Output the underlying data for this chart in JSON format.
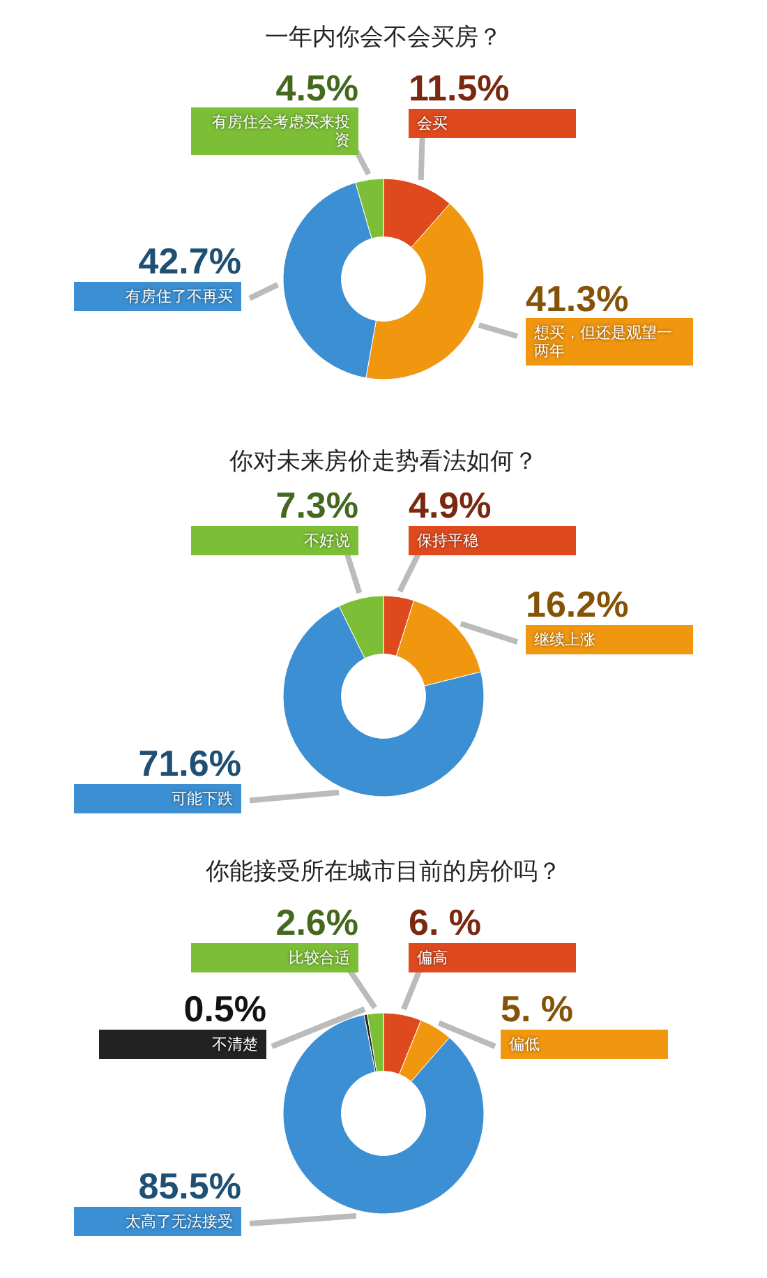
{
  "chart_data": [
    {
      "type": "donut",
      "title": "一年内你会不会买房？",
      "categories": [
        "会买",
        "想买，但还是观望一两年",
        "有房住了不再买",
        "有房住会考虑买来投资"
      ],
      "values": [
        11.5,
        41.3,
        42.7,
        4.5
      ],
      "value_labels": [
        "11.5%",
        "41.3%",
        "42.7%",
        "4.5%"
      ],
      "colors": [
        "#de4a1e",
        "#f0960f",
        "#3b8fd2",
        "#7cbf36"
      ]
    },
    {
      "type": "donut",
      "title": "你对未来房价走势看法如何？",
      "categories": [
        "保持平稳",
        "继续上涨",
        "可能下跌",
        "不好说"
      ],
      "values": [
        4.9,
        16.2,
        71.6,
        7.3
      ],
      "value_labels": [
        "4.9%",
        "16.2%",
        "71.6%",
        "7.3%"
      ],
      "colors": [
        "#de4a1e",
        "#f0960f",
        "#3b8fd2",
        "#7cbf36"
      ]
    },
    {
      "type": "donut",
      "title": "你能接受所在城市目前的房价吗？",
      "categories": [
        "偏高",
        "偏低",
        "太高了无法接受",
        "不清楚",
        "比较合适"
      ],
      "values": [
        6.1,
        5.3,
        85.5,
        0.5,
        2.6
      ],
      "value_labels": [
        "6. %",
        "5. %",
        "85.5%",
        "0.5%",
        "2.6%"
      ],
      "colors": [
        "#de4a1e",
        "#f0960f",
        "#3b8fd2",
        "#222222",
        "#7cbf36"
      ]
    }
  ]
}
